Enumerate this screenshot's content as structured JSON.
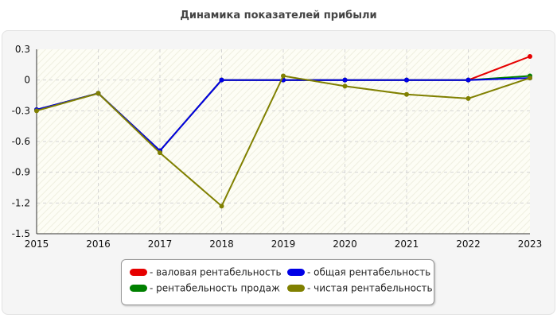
{
  "chart_data": {
    "type": "line",
    "title": "Динамика показателей прибыли",
    "x": [
      "2015",
      "2016",
      "2017",
      "2018",
      "2019",
      "2020",
      "2021",
      "2022",
      "2023"
    ],
    "ylim": [
      -1.5,
      0.3
    ],
    "yticks": [
      "0.3",
      "0",
      "-0.3",
      "-0.6",
      "-0.9",
      "-1.2",
      "-1.5"
    ],
    "grid": true,
    "legend_position": "bottom",
    "series": [
      {
        "name": "- валовая рентабельность",
        "color": "#e60000",
        "values": [
          -0.29,
          -0.13,
          -0.69,
          0.0,
          0.0,
          0.0,
          0.0,
          0.0,
          0.23
        ]
      },
      {
        "name": "- рентабельность продаж",
        "color": "#008000",
        "values": [
          -0.29,
          -0.13,
          -0.69,
          0.0,
          0.0,
          0.0,
          0.0,
          0.0,
          0.04
        ]
      },
      {
        "name": "- общая рентабельность",
        "color": "#0000e6",
        "values": [
          -0.29,
          -0.13,
          -0.69,
          0.0,
          0.0,
          0.0,
          0.0,
          0.0,
          0.02
        ]
      },
      {
        "name": "- чистая рентабельность",
        "color": "#808000",
        "values": [
          -0.3,
          -0.13,
          -0.71,
          -1.23,
          0.04,
          -0.06,
          -0.14,
          -0.18,
          0.02
        ]
      }
    ]
  }
}
